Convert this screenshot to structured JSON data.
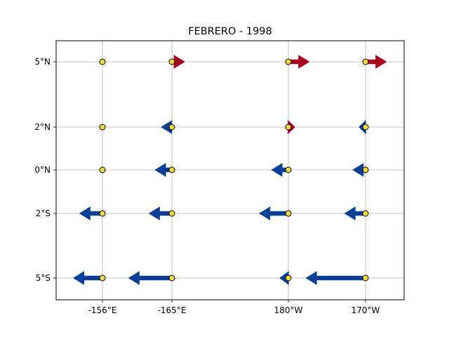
{
  "chart_data": {
    "type": "scatter",
    "title": "FEBRERO - 1998",
    "xlabel": "",
    "ylabel": "",
    "x_ticks": [
      {
        "value": -156,
        "label": "-156°E"
      },
      {
        "value": -165,
        "label": "-165°E"
      },
      {
        "value": 180,
        "label": "180°W"
      },
      {
        "value": 170,
        "label": "170°W"
      }
    ],
    "y_ticks": [
      {
        "value": 5,
        "label": "5°N"
      },
      {
        "value": 2,
        "label": "2°N"
      },
      {
        "value": 0,
        "label": "0°N"
      },
      {
        "value": -2,
        "label": "2°S"
      },
      {
        "value": -5,
        "label": "5°S"
      }
    ],
    "grid": true,
    "station_color": "#f2dc3c",
    "east_arrow_color": "#a8001e",
    "west_arrow_color": "#0a3f97",
    "stations": [
      {
        "lon": -156,
        "lat": 5,
        "u": 0
      },
      {
        "lon": -156,
        "lat": 2,
        "u": 0
      },
      {
        "lon": -156,
        "lat": 0,
        "u": 0
      },
      {
        "lon": -156,
        "lat": -2,
        "u": -1.1
      },
      {
        "lon": -156,
        "lat": -5,
        "u": -1.4
      },
      {
        "lon": -165,
        "lat": 5,
        "u": 0.6
      },
      {
        "lon": -165,
        "lat": 2,
        "u": -0.5
      },
      {
        "lon": -165,
        "lat": 0,
        "u": -0.8
      },
      {
        "lon": -165,
        "lat": -2,
        "u": -1.1
      },
      {
        "lon": -165,
        "lat": -5,
        "u": -2.1
      },
      {
        "lon": 180,
        "lat": 5,
        "u": 1.0
      },
      {
        "lon": 180,
        "lat": 2,
        "u": 0.3
      },
      {
        "lon": 180,
        "lat": 0,
        "u": -0.8
      },
      {
        "lon": 180,
        "lat": -2,
        "u": -1.4
      },
      {
        "lon": 180,
        "lat": -5,
        "u": -0.4
      },
      {
        "lon": 170,
        "lat": 5,
        "u": 1.0
      },
      {
        "lon": 170,
        "lat": 2,
        "u": -0.3
      },
      {
        "lon": 170,
        "lat": 0,
        "u": -0.6
      },
      {
        "lon": 170,
        "lat": -2,
        "u": -1.0
      },
      {
        "lon": 170,
        "lat": -5,
        "u": -2.9
      }
    ]
  }
}
